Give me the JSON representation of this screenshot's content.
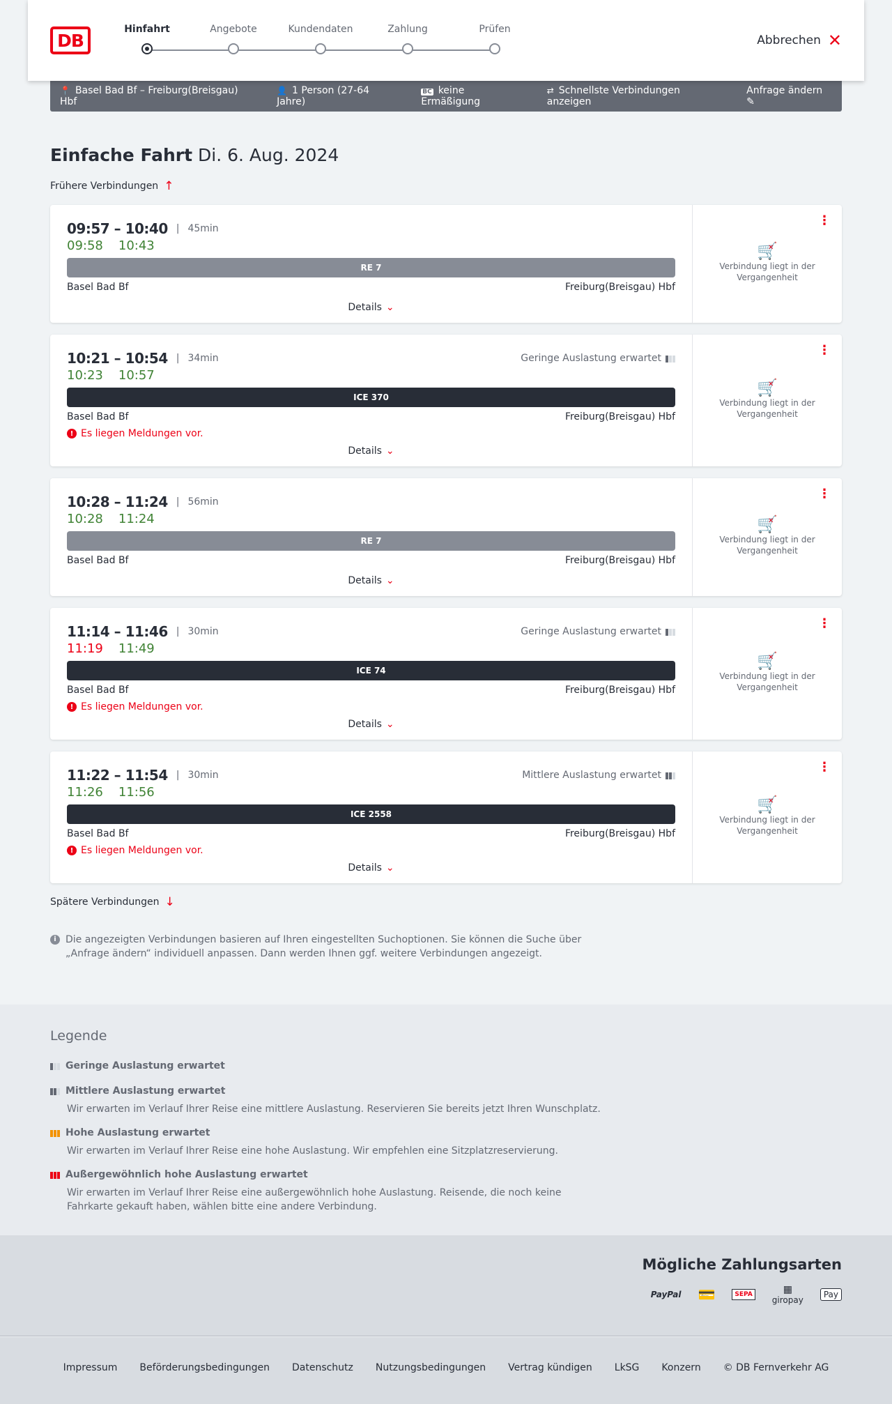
{
  "header": {
    "logo": "DB",
    "steps": [
      "Hinfahrt",
      "Angebote",
      "Kundendaten",
      "Zahlung",
      "Prüfen"
    ],
    "active_step": 0,
    "cancel": "Abbrechen"
  },
  "summary": {
    "route": "Basel Bad Bf – Freiburg(Breisgau) Hbf",
    "passengers": "1 Person (27-64 Jahre)",
    "discount_badge": "BC",
    "discount": "keine Ermäßigung",
    "option": "Schnellste Verbindungen anzeigen",
    "edit": "Anfrage ändern"
  },
  "page": {
    "title": "Einfache Fahrt",
    "date": "Di. 6. Aug. 2024",
    "earlier": "Frühere Verbindungen",
    "later": "Spätere Verbindungen"
  },
  "connections": [
    {
      "time": "09:57 – 10:40",
      "duration": "45min",
      "rt_dep": "09:58",
      "rt_arr": "10:43",
      "rt_dep_late": false,
      "train": "RE 7",
      "train_type": "re",
      "from": "Basel Bad Bf",
      "to": "Freiburg(Breisgau) Hbf",
      "load": "",
      "message": "",
      "details": "Details",
      "status": "Verbindung liegt in der Vergangenheit"
    },
    {
      "time": "10:21 – 10:54",
      "duration": "34min",
      "rt_dep": "10:23",
      "rt_arr": "10:57",
      "rt_dep_late": false,
      "train": "ICE 370",
      "train_type": "ice",
      "from": "Basel Bad Bf",
      "to": "Freiburg(Breisgau) Hbf",
      "load": "Geringe Auslastung erwartet",
      "load_level": 1,
      "message": "Es liegen Meldungen vor.",
      "details": "Details",
      "status": "Verbindung liegt in der Vergangenheit"
    },
    {
      "time": "10:28 – 11:24",
      "duration": "56min",
      "rt_dep": "10:28",
      "rt_arr": "11:24",
      "rt_dep_late": false,
      "train": "RE 7",
      "train_type": "re",
      "from": "Basel Bad Bf",
      "to": "Freiburg(Breisgau) Hbf",
      "load": "",
      "message": "",
      "details": "Details",
      "status": "Verbindung liegt in der Vergangenheit"
    },
    {
      "time": "11:14 – 11:46",
      "duration": "30min",
      "rt_dep": "11:19",
      "rt_arr": "11:49",
      "rt_dep_late": true,
      "train": "ICE 74",
      "train_type": "ice",
      "from": "Basel Bad Bf",
      "to": "Freiburg(Breisgau) Hbf",
      "load": "Geringe Auslastung erwartet",
      "load_level": 1,
      "message": "Es liegen Meldungen vor.",
      "details": "Details",
      "status": "Verbindung liegt in der Vergangenheit"
    },
    {
      "time": "11:22 – 11:54",
      "duration": "30min",
      "rt_dep": "11:26",
      "rt_arr": "11:56",
      "rt_dep_late": false,
      "train": "ICE 2558",
      "train_type": "ice",
      "from": "Basel Bad Bf",
      "to": "Freiburg(Breisgau) Hbf",
      "load": "Mittlere Auslastung erwartet",
      "load_level": 2,
      "message": "Es liegen Meldungen vor.",
      "details": "Details",
      "status": "Verbindung liegt in der Vergangenheit"
    }
  ],
  "info": "Die angezeigten Verbindungen basieren auf Ihren eingestellten Suchoptionen. Sie können die Suche über „Anfrage ändern“ individuell anpassen. Dann werden Ihnen ggf. weitere Verbindungen angezeigt.",
  "legend": {
    "title": "Legende",
    "items": [
      {
        "title": "Geringe Auslastung erwartet",
        "text": ""
      },
      {
        "title": "Mittlere Auslastung erwartet",
        "text": "Wir erwarten im Verlauf Ihrer Reise eine mittlere Auslastung. Reservieren Sie bereits jetzt Ihren Wunschplatz."
      },
      {
        "title": "Hohe Auslastung erwartet",
        "text": "Wir erwarten im Verlauf Ihrer Reise eine hohe Auslastung. Wir empfehlen eine Sitzplatzreservierung."
      },
      {
        "title": "Außergewöhnlich hohe Auslastung erwartet",
        "text": "Wir erwarten im Verlauf Ihrer Reise eine außergewöhnlich hohe Auslastung. Reisende, die noch keine Fahrkarte gekauft haben, wählen bitte eine andere Verbindung."
      }
    ]
  },
  "payment": {
    "title": "Mögliche Zahlungsarten",
    "methods": [
      "PayPal",
      "Kreditkarte",
      "SEPA",
      "giropay",
      "Pay"
    ]
  },
  "footer": {
    "links": [
      "Impressum",
      "Beförderungsbedingungen",
      "Datenschutz",
      "Nutzungsbedingungen",
      "Vertrag kündigen",
      "LkSG",
      "Konzern",
      "© DB Fernverkehr AG"
    ]
  },
  "colors": {
    "brand": "#ec0016",
    "on_time": "#408335",
    "summary_bar": "#646973",
    "ice": "#282d37",
    "re": "#878c96",
    "high_load": "#f39200"
  }
}
